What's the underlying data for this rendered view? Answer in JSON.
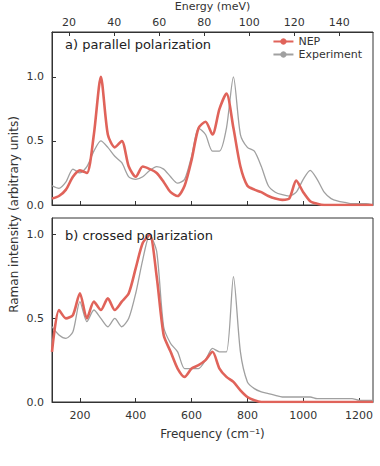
{
  "chart_data": [
    {
      "type": "line",
      "title": "a) parallel polarization",
      "ylabel": "Raman intensity (arbitrary units)",
      "x2label": "Energy (meV)",
      "x2lim": [
        12.4,
        155.0
      ],
      "x2ticks": [
        20,
        40,
        60,
        80,
        100,
        120,
        140
      ],
      "xlim": [
        100,
        1250
      ],
      "xticks": [
        200,
        400,
        600,
        800,
        1000,
        1200
      ],
      "ylim": [
        0,
        1.35
      ],
      "yticks": [
        {
          "value": 0,
          "label": "0.0"
        },
        {
          "value": 0.5,
          "label": "0.5"
        },
        {
          "value": 1,
          "label": "1.0"
        }
      ],
      "legend": "upper right",
      "x": [
        100,
        125,
        150,
        175,
        200,
        225,
        250,
        275,
        300,
        325,
        350,
        375,
        400,
        425,
        450,
        475,
        500,
        525,
        550,
        575,
        600,
        625,
        650,
        675,
        700,
        725,
        750,
        775,
        800,
        825,
        850,
        875,
        900,
        925,
        950,
        975,
        1000,
        1025,
        1050,
        1075,
        1100,
        1125,
        1150,
        1175,
        1200,
        1225,
        1250
      ],
      "series": [
        {
          "name": "NEP",
          "color": "#e0635a",
          "values": [
            0.05,
            0.07,
            0.12,
            0.22,
            0.27,
            0.25,
            0.55,
            1.0,
            0.55,
            0.45,
            0.5,
            0.3,
            0.22,
            0.3,
            0.28,
            0.25,
            0.18,
            0.1,
            0.07,
            0.15,
            0.35,
            0.6,
            0.65,
            0.55,
            0.75,
            0.87,
            0.6,
            0.3,
            0.15,
            0.12,
            0.1,
            0.07,
            0.05,
            0.04,
            0.05,
            0.19,
            0.1,
            0.03,
            0.01,
            0,
            0,
            0,
            0,
            0,
            0,
            0,
            0
          ]
        },
        {
          "name": "Experiment",
          "color": "#a0a0a0",
          "values": [
            0.15,
            0.13,
            0.18,
            0.28,
            0.25,
            0.3,
            0.42,
            0.5,
            0.45,
            0.38,
            0.33,
            0.22,
            0.2,
            0.22,
            0.27,
            0.3,
            0.28,
            0.22,
            0.17,
            0.2,
            0.38,
            0.6,
            0.55,
            0.42,
            0.42,
            0.6,
            1.0,
            0.55,
            0.45,
            0.42,
            0.3,
            0.15,
            0.1,
            0.08,
            0.07,
            0.1,
            0.2,
            0.27,
            0.2,
            0.1,
            0.05,
            0.03,
            0.02,
            0.01,
            0.01,
            0.01,
            0
          ]
        }
      ]
    },
    {
      "type": "line",
      "title": "b) crossed polarization",
      "xlabel": "Frequency (cm⁻¹)",
      "xlim": [
        100,
        1250
      ],
      "xticks": [
        200,
        400,
        600,
        800,
        1000,
        1200
      ],
      "ylim": [
        0,
        1.1
      ],
      "yticks": [
        {
          "value": 0,
          "label": "0.0"
        },
        {
          "value": 0.5,
          "label": "0.5"
        },
        {
          "value": 1,
          "label": "1.0"
        }
      ],
      "x": [
        100,
        125,
        150,
        175,
        200,
        225,
        250,
        275,
        300,
        325,
        350,
        375,
        400,
        425,
        450,
        475,
        500,
        525,
        550,
        575,
        600,
        625,
        650,
        675,
        700,
        725,
        750,
        775,
        800,
        825,
        850,
        875,
        900,
        925,
        950,
        975,
        1000,
        1025,
        1050,
        1075,
        1100,
        1125,
        1150,
        1175,
        1200,
        1225,
        1250
      ],
      "series": [
        {
          "name": "NEP",
          "color": "#e0635a",
          "values": [
            0.3,
            0.55,
            0.5,
            0.52,
            0.65,
            0.5,
            0.6,
            0.55,
            0.62,
            0.55,
            0.6,
            0.65,
            0.8,
            0.95,
            1.0,
            0.75,
            0.4,
            0.3,
            0.2,
            0.15,
            0.2,
            0.22,
            0.25,
            0.3,
            0.2,
            0.15,
            0.12,
            0.07,
            0.03,
            0.01,
            0,
            0,
            0,
            0,
            0,
            0,
            0,
            0,
            0,
            0,
            0,
            0,
            0,
            0,
            0,
            0,
            0
          ]
        },
        {
          "name": "Experiment",
          "color": "#a0a0a0",
          "values": [
            0.45,
            0.4,
            0.38,
            0.42,
            0.6,
            0.48,
            0.55,
            0.5,
            0.45,
            0.5,
            0.45,
            0.5,
            0.65,
            0.85,
            1.0,
            0.9,
            0.45,
            0.35,
            0.3,
            0.2,
            0.2,
            0.2,
            0.25,
            0.32,
            0.3,
            0.3,
            0.75,
            0.3,
            0.12,
            0.08,
            0.06,
            0.05,
            0.04,
            0.03,
            0.03,
            0.03,
            0.03,
            0.03,
            0.02,
            0.02,
            0.02,
            0.02,
            0.02,
            0.02,
            0.01,
            0.01,
            0.01
          ]
        }
      ]
    }
  ]
}
